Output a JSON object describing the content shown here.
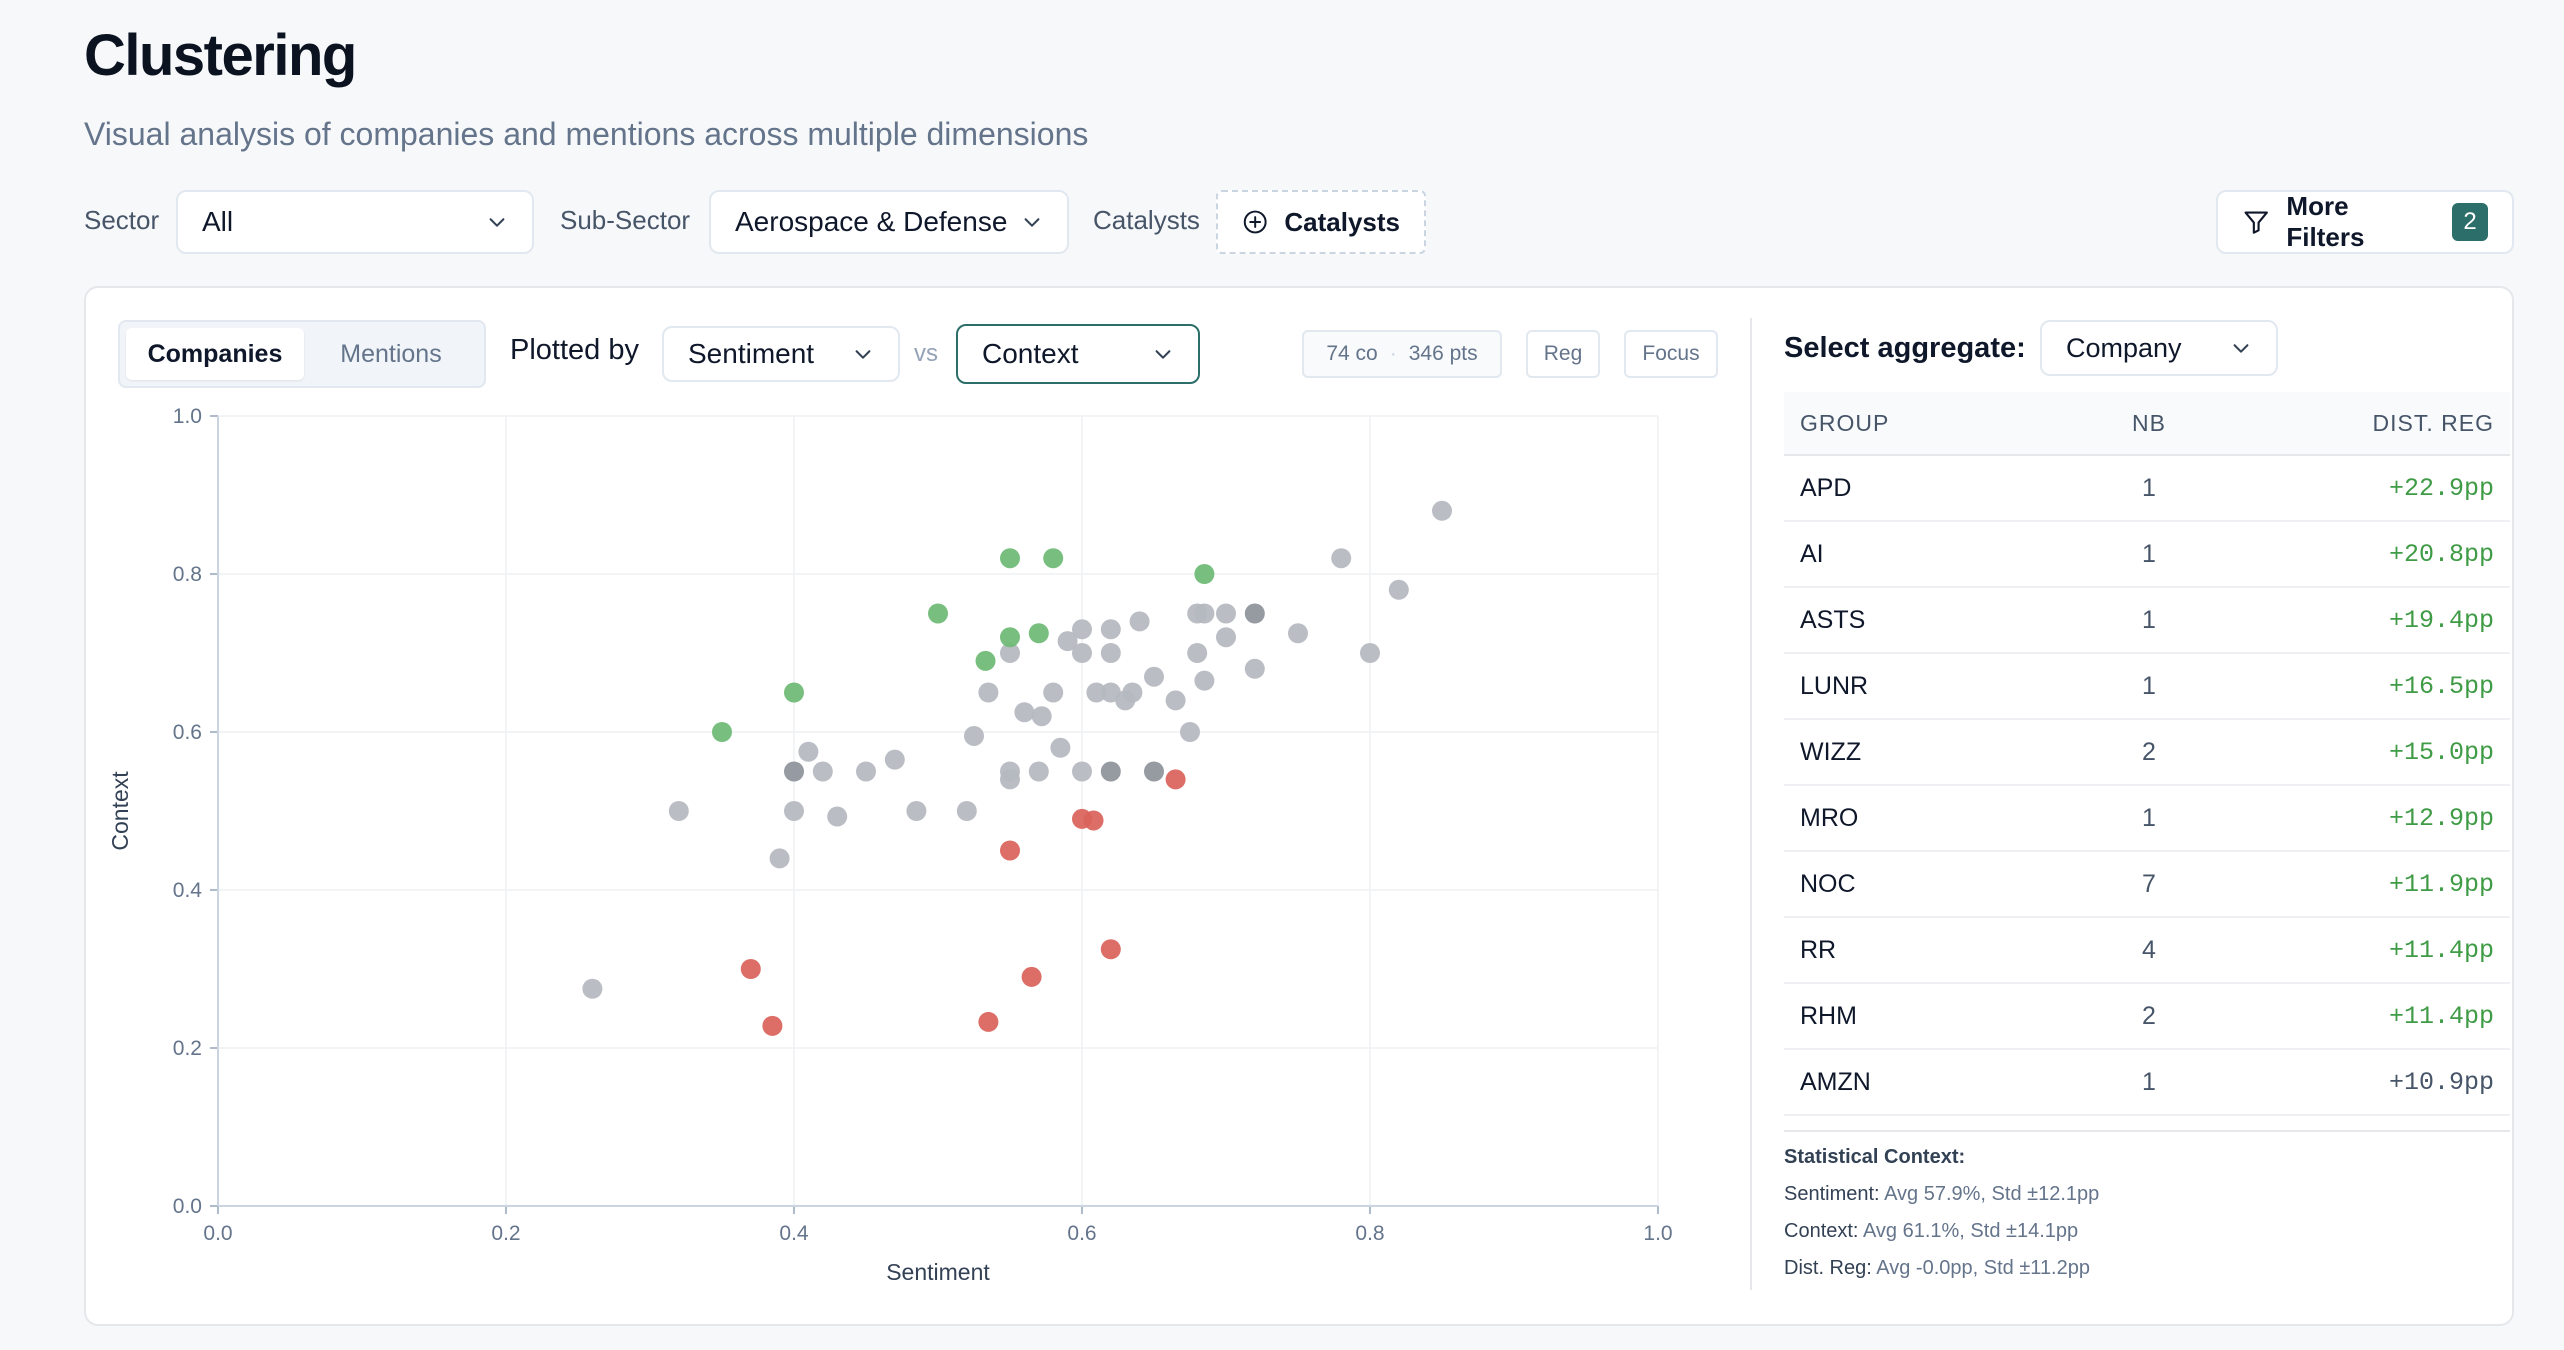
{
  "header": {
    "title": "Clustering",
    "subtitle": "Visual analysis of companies and mentions across multiple dimensions"
  },
  "filters": {
    "sector_label": "Sector",
    "sector_value": "All",
    "subsector_label": "Sub-Sector",
    "subsector_value": "Aerospace & Defense",
    "catalysts_label": "Catalysts",
    "catalysts_button": "Catalysts",
    "more_filters_label": "More Filters",
    "more_filters_count": "2"
  },
  "plot_controls": {
    "tabs": [
      {
        "label": "Companies",
        "active": true
      },
      {
        "label": "Mentions",
        "active": false
      }
    ],
    "plotted_by_label": "Plotted by",
    "x_metric": "Sentiment",
    "vs_label": "vs",
    "y_metric": "Context",
    "count_companies": "74 co",
    "count_separator": "·",
    "count_points": "346 pts",
    "reg_button": "Reg",
    "focus_button": "Focus"
  },
  "colors": {
    "positive": "#6cba74",
    "negative": "#d9625a",
    "neutral": "#b4b8bf",
    "neutral_dark": "#8d929a",
    "accent": "#2c6e6a"
  },
  "chart_data": {
    "type": "scatter",
    "xlabel": "Sentiment",
    "ylabel": "Context",
    "xlim": [
      0.0,
      1.0
    ],
    "ylim": [
      0.0,
      1.0
    ],
    "xticks": [
      "0.0",
      "0.2",
      "0.4",
      "0.6",
      "0.8",
      "1.0"
    ],
    "yticks": [
      "0.0",
      "0.2",
      "0.4",
      "0.6",
      "0.8",
      "1.0"
    ],
    "grid": true,
    "points": [
      {
        "x": 0.55,
        "y": 0.82,
        "group": "positive"
      },
      {
        "x": 0.58,
        "y": 0.82,
        "group": "positive"
      },
      {
        "x": 0.685,
        "y": 0.8,
        "group": "positive"
      },
      {
        "x": 0.5,
        "y": 0.75,
        "group": "positive"
      },
      {
        "x": 0.55,
        "y": 0.72,
        "group": "positive"
      },
      {
        "x": 0.57,
        "y": 0.725,
        "group": "positive"
      },
      {
        "x": 0.533,
        "y": 0.69,
        "group": "positive"
      },
      {
        "x": 0.4,
        "y": 0.65,
        "group": "positive"
      },
      {
        "x": 0.35,
        "y": 0.6,
        "group": "positive"
      },
      {
        "x": 0.665,
        "y": 0.54,
        "group": "negative"
      },
      {
        "x": 0.6,
        "y": 0.49,
        "group": "negative"
      },
      {
        "x": 0.608,
        "y": 0.488,
        "group": "negative"
      },
      {
        "x": 0.55,
        "y": 0.45,
        "group": "negative"
      },
      {
        "x": 0.62,
        "y": 0.325,
        "group": "negative"
      },
      {
        "x": 0.37,
        "y": 0.3,
        "group": "negative"
      },
      {
        "x": 0.565,
        "y": 0.29,
        "group": "negative"
      },
      {
        "x": 0.385,
        "y": 0.228,
        "group": "negative"
      },
      {
        "x": 0.535,
        "y": 0.233,
        "group": "negative"
      },
      {
        "x": 0.85,
        "y": 0.88,
        "group": "neutral"
      },
      {
        "x": 0.78,
        "y": 0.82,
        "group": "neutral"
      },
      {
        "x": 0.82,
        "y": 0.78,
        "group": "neutral"
      },
      {
        "x": 0.68,
        "y": 0.75,
        "group": "neutral"
      },
      {
        "x": 0.685,
        "y": 0.75,
        "group": "neutral"
      },
      {
        "x": 0.7,
        "y": 0.75,
        "group": "neutral"
      },
      {
        "x": 0.72,
        "y": 0.75,
        "group": "neutral_dark"
      },
      {
        "x": 0.64,
        "y": 0.74,
        "group": "neutral"
      },
      {
        "x": 0.6,
        "y": 0.73,
        "group": "neutral"
      },
      {
        "x": 0.62,
        "y": 0.73,
        "group": "neutral"
      },
      {
        "x": 0.75,
        "y": 0.725,
        "group": "neutral"
      },
      {
        "x": 0.7,
        "y": 0.72,
        "group": "neutral"
      },
      {
        "x": 0.59,
        "y": 0.715,
        "group": "neutral"
      },
      {
        "x": 0.55,
        "y": 0.7,
        "group": "neutral"
      },
      {
        "x": 0.6,
        "y": 0.7,
        "group": "neutral"
      },
      {
        "x": 0.62,
        "y": 0.7,
        "group": "neutral"
      },
      {
        "x": 0.68,
        "y": 0.7,
        "group": "neutral"
      },
      {
        "x": 0.8,
        "y": 0.7,
        "group": "neutral"
      },
      {
        "x": 0.72,
        "y": 0.68,
        "group": "neutral"
      },
      {
        "x": 0.65,
        "y": 0.67,
        "group": "neutral"
      },
      {
        "x": 0.685,
        "y": 0.665,
        "group": "neutral"
      },
      {
        "x": 0.535,
        "y": 0.65,
        "group": "neutral"
      },
      {
        "x": 0.58,
        "y": 0.65,
        "group": "neutral"
      },
      {
        "x": 0.61,
        "y": 0.65,
        "group": "neutral"
      },
      {
        "x": 0.62,
        "y": 0.65,
        "group": "neutral"
      },
      {
        "x": 0.635,
        "y": 0.65,
        "group": "neutral"
      },
      {
        "x": 0.63,
        "y": 0.64,
        "group": "neutral"
      },
      {
        "x": 0.665,
        "y": 0.64,
        "group": "neutral"
      },
      {
        "x": 0.56,
        "y": 0.625,
        "group": "neutral"
      },
      {
        "x": 0.572,
        "y": 0.62,
        "group": "neutral"
      },
      {
        "x": 0.675,
        "y": 0.6,
        "group": "neutral"
      },
      {
        "x": 0.525,
        "y": 0.595,
        "group": "neutral"
      },
      {
        "x": 0.585,
        "y": 0.58,
        "group": "neutral"
      },
      {
        "x": 0.41,
        "y": 0.575,
        "group": "neutral"
      },
      {
        "x": 0.47,
        "y": 0.565,
        "group": "neutral"
      },
      {
        "x": 0.4,
        "y": 0.55,
        "group": "neutral_dark"
      },
      {
        "x": 0.42,
        "y": 0.55,
        "group": "neutral"
      },
      {
        "x": 0.45,
        "y": 0.55,
        "group": "neutral"
      },
      {
        "x": 0.55,
        "y": 0.55,
        "group": "neutral"
      },
      {
        "x": 0.57,
        "y": 0.55,
        "group": "neutral"
      },
      {
        "x": 0.6,
        "y": 0.55,
        "group": "neutral"
      },
      {
        "x": 0.62,
        "y": 0.55,
        "group": "neutral_dark"
      },
      {
        "x": 0.65,
        "y": 0.55,
        "group": "neutral_dark"
      },
      {
        "x": 0.55,
        "y": 0.54,
        "group": "neutral"
      },
      {
        "x": 0.32,
        "y": 0.5,
        "group": "neutral"
      },
      {
        "x": 0.4,
        "y": 0.5,
        "group": "neutral"
      },
      {
        "x": 0.43,
        "y": 0.493,
        "group": "neutral"
      },
      {
        "x": 0.485,
        "y": 0.5,
        "group": "neutral"
      },
      {
        "x": 0.52,
        "y": 0.5,
        "group": "neutral"
      },
      {
        "x": 0.39,
        "y": 0.44,
        "group": "neutral"
      },
      {
        "x": 0.26,
        "y": 0.275,
        "group": "neutral"
      }
    ]
  },
  "aggregate": {
    "label": "Select aggregate:",
    "value": "Company",
    "columns": [
      "GROUP",
      "NB",
      "DIST. REG"
    ],
    "rows": [
      {
        "group": "APD",
        "nb": "1",
        "dist": "+22.9pp",
        "tone": "pos"
      },
      {
        "group": "AI",
        "nb": "1",
        "dist": "+20.8pp",
        "tone": "pos"
      },
      {
        "group": "ASTS",
        "nb": "1",
        "dist": "+19.4pp",
        "tone": "pos"
      },
      {
        "group": "LUNR",
        "nb": "1",
        "dist": "+16.5pp",
        "tone": "pos"
      },
      {
        "group": "WIZZ",
        "nb": "2",
        "dist": "+15.0pp",
        "tone": "pos"
      },
      {
        "group": "MRO",
        "nb": "1",
        "dist": "+12.9pp",
        "tone": "pos"
      },
      {
        "group": "NOC",
        "nb": "7",
        "dist": "+11.9pp",
        "tone": "pos"
      },
      {
        "group": "RR",
        "nb": "4",
        "dist": "+11.4pp",
        "tone": "pos"
      },
      {
        "group": "RHM",
        "nb": "2",
        "dist": "+11.4pp",
        "tone": "pos"
      },
      {
        "group": "AMZN",
        "nb": "1",
        "dist": "+10.9pp",
        "tone": "neu"
      }
    ]
  },
  "stats": {
    "title": "Statistical Context:",
    "lines": [
      {
        "key": "Sentiment:",
        "text": " Avg 57.9%, Std ±12.1pp"
      },
      {
        "key": "Context:",
        "text": " Avg 61.1%, Std ±14.1pp"
      },
      {
        "key": "Dist. Reg:",
        "text": " Avg -0.0pp, Std ±11.2pp"
      }
    ]
  }
}
